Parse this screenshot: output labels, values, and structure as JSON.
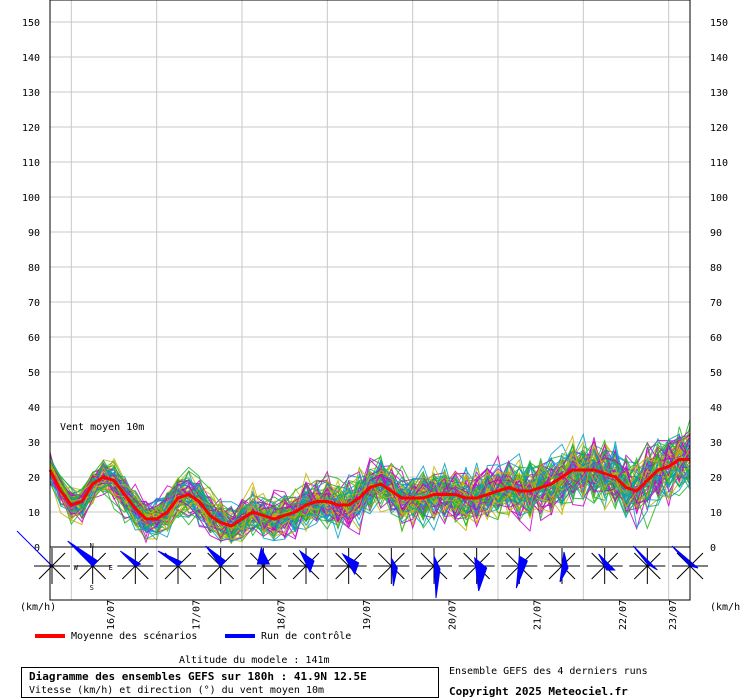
{
  "chart_data": {
    "type": "line",
    "title": "Diagramme des ensembles GEFS sur 180h : 41.9N 12.5E",
    "subtitle": "Vitesse (km/h) et direction (°) du vent moyen 10m",
    "annotation": "Vent moyen 10m",
    "ylim": [
      0,
      155
    ],
    "yticks": [
      0,
      10,
      20,
      30,
      40,
      50,
      60,
      70,
      80,
      90,
      100,
      110,
      120,
      130,
      140,
      150
    ],
    "y_unit_left": "(km/h)",
    "y_unit_right": "(km/h)",
    "grid": true,
    "x_hours_range": [
      0,
      180
    ],
    "date_ticks": [
      {
        "label": "16/07",
        "hour": 18
      },
      {
        "label": "17/07",
        "hour": 42
      },
      {
        "label": "18/07",
        "hour": 66
      },
      {
        "label": "19/07",
        "hour": 90
      },
      {
        "label": "20/07",
        "hour": 114
      },
      {
        "label": "21/07",
        "hour": 138
      },
      {
        "label": "22/07",
        "hour": 162
      },
      {
        "label": "23/07",
        "hour": 176
      }
    ],
    "series": [
      {
        "name": "Moyenne des scénarios",
        "color": "#ff0000",
        "x": [
          0,
          3,
          6,
          9,
          12,
          15,
          18,
          21,
          24,
          27,
          30,
          33,
          36,
          39,
          42,
          45,
          48,
          51,
          54,
          57,
          60,
          63,
          66,
          69,
          72,
          75,
          78,
          81,
          84,
          87,
          90,
          93,
          96,
          99,
          102,
          105,
          108,
          111,
          114,
          117,
          120,
          123,
          126,
          129,
          132,
          135,
          138,
          141,
          144,
          147,
          150,
          153,
          156,
          159,
          162,
          165,
          168,
          171,
          174,
          177,
          180
        ],
        "values": [
          22,
          16,
          12,
          13,
          18,
          20,
          19,
          15,
          11,
          8,
          8,
          10,
          14,
          15,
          13,
          9,
          7,
          6,
          8,
          10,
          9,
          8,
          9,
          10,
          12,
          13,
          13,
          12,
          12,
          14,
          17,
          18,
          16,
          14,
          14,
          14,
          15,
          15,
          15,
          14,
          14,
          15,
          16,
          17,
          16,
          16,
          17,
          18,
          20,
          22,
          22,
          22,
          21,
          20,
          17,
          16,
          19,
          22,
          23,
          25,
          25
        ]
      },
      {
        "name": "Run de contrôle",
        "color": "#0000ff",
        "values": []
      }
    ],
    "ensemble_colors": [
      "#22b422",
      "#cc00cc",
      "#c8b400",
      "#00a0c8"
    ],
    "wind_direction_hours": [
      0,
      12,
      24,
      36,
      48,
      60,
      72,
      84,
      96,
      108,
      120,
      132,
      144,
      156,
      168,
      180
    ],
    "wind_rose_labels": {
      "n": "N",
      "s": "S",
      "e": "E",
      "w": "W"
    }
  },
  "legend": {
    "mean_label": "Moyenne des scénarios",
    "control_label": "Run de contrôle",
    "mean_color": "#ff0000",
    "control_color": "#0000ff"
  },
  "footer": {
    "altitude": "Altitude du modele : 141m",
    "title": "Diagramme des ensembles GEFS sur 180h : 41.9N 12.5E",
    "subtitle": "Vitesse (km/h) et direction (°) du vent moyen 10m",
    "ensemble_note": "Ensemble GEFS des 4 derniers runs",
    "copyright": "Copyright 2025 Meteociel.fr"
  }
}
